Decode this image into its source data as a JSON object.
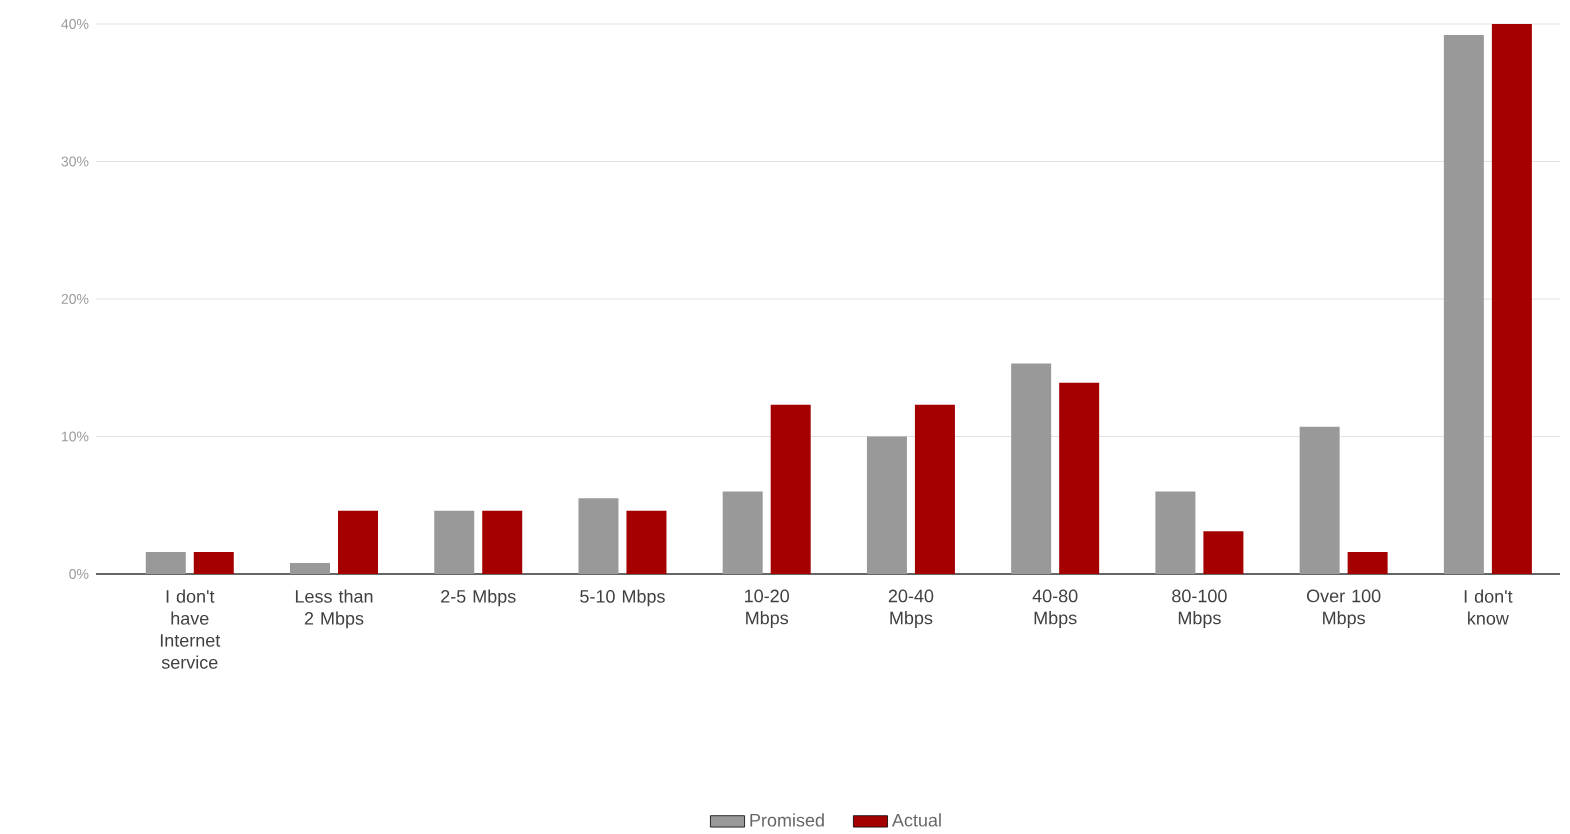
{
  "chart_data": {
    "type": "bar",
    "categories": [
      "I don't have Internet service",
      "Less than 2 Mbps",
      "2-5 Mbps",
      "5-10 Mbps",
      "10-20 Mbps",
      "20-40 Mbps",
      "40-80 Mbps",
      "80-100 Mbps",
      "Over 100 Mbps",
      "I don't know"
    ],
    "series": [
      {
        "name": "Promised",
        "color": "#999999",
        "values": [
          1.6,
          0.8,
          4.6,
          5.5,
          6.0,
          10.0,
          15.3,
          6.0,
          10.7,
          39.2
        ]
      },
      {
        "name": "Actual",
        "color": "#a50000",
        "values": [
          1.6,
          4.6,
          4.6,
          4.6,
          12.3,
          12.3,
          13.9,
          3.1,
          1.6,
          40.0
        ]
      }
    ],
    "ylim": [
      0,
      40
    ],
    "yticks": [
      {
        "value": 0,
        "label": "0%"
      },
      {
        "value": 10,
        "label": "10%"
      },
      {
        "value": 20,
        "label": "20%"
      },
      {
        "value": 30,
        "label": "30%"
      },
      {
        "value": 40,
        "label": "40%"
      }
    ],
    "grid": "y",
    "legend": "bottom"
  }
}
